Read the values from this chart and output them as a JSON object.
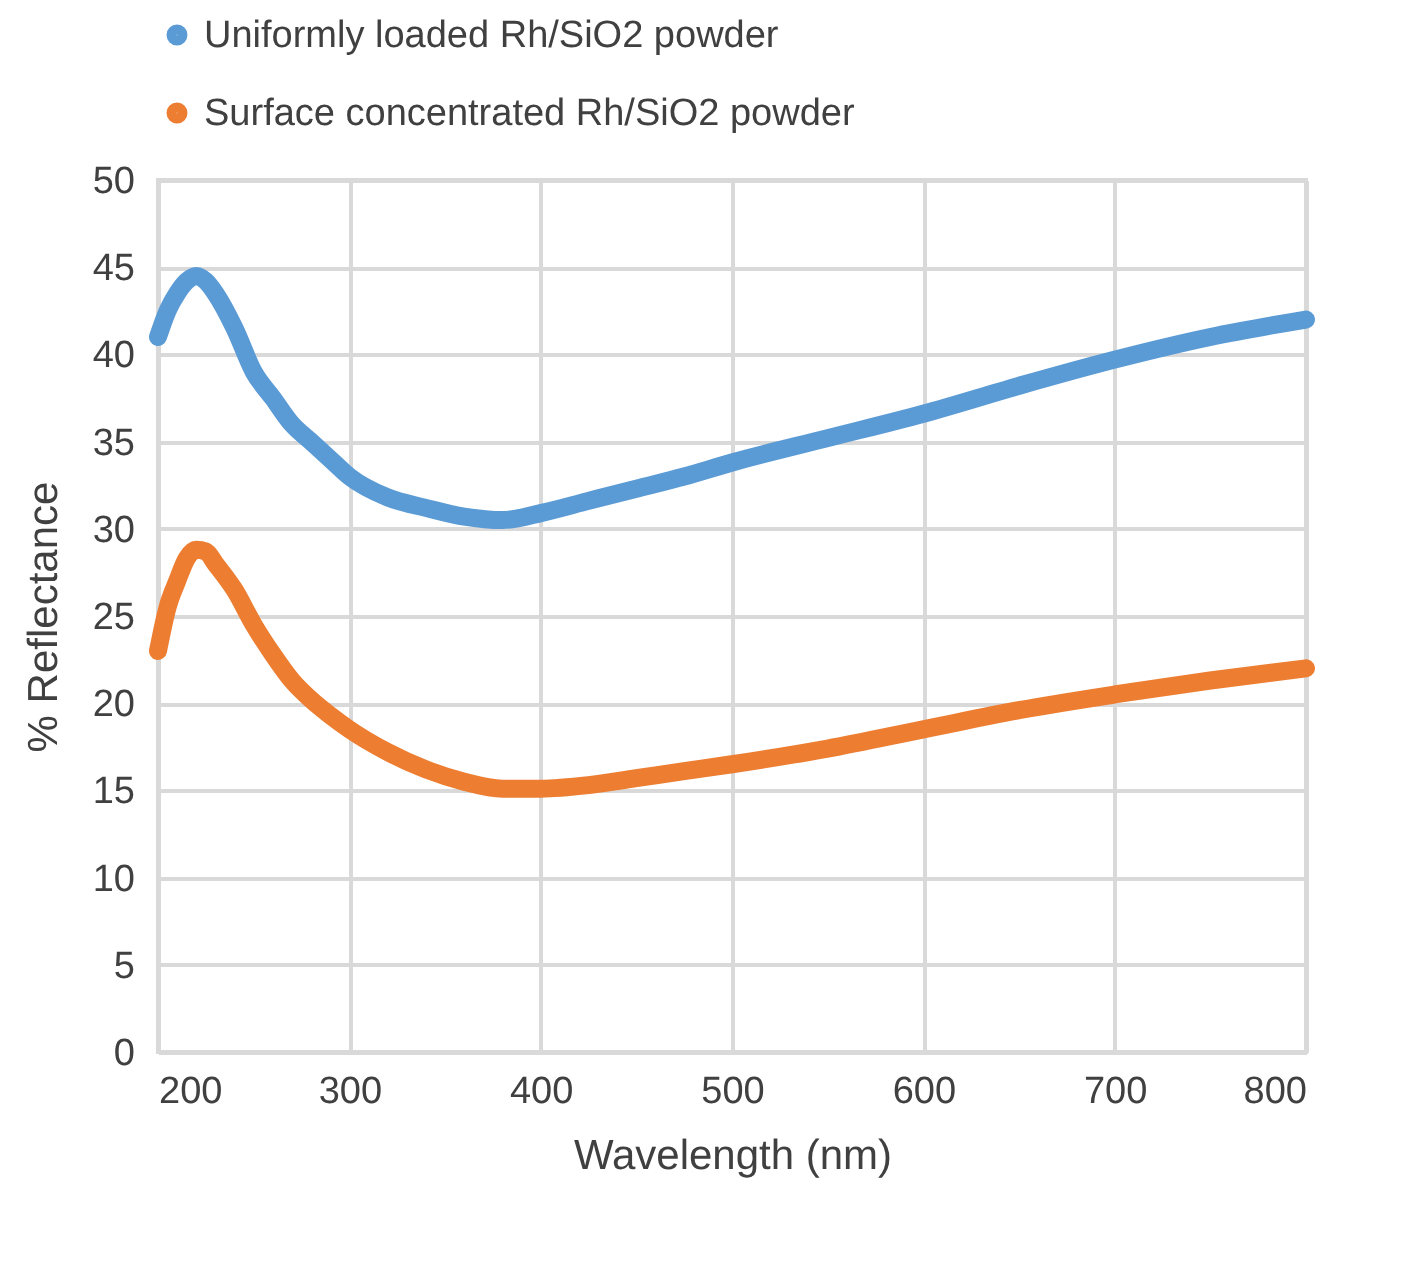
{
  "chart_data": {
    "type": "line",
    "xlabel": "Wavelength (nm)",
    "ylabel": "% Reflectance",
    "xlim": [
      200,
      800
    ],
    "xticks": [
      200,
      300,
      400,
      500,
      600,
      700,
      800
    ],
    "ylim": [
      0,
      50
    ],
    "yticks": [
      0,
      5,
      10,
      15,
      20,
      25,
      30,
      35,
      40,
      45,
      50
    ],
    "grid": true,
    "legend": "top",
    "x": [
      200,
      205,
      210,
      215,
      220,
      225,
      230,
      240,
      250,
      260,
      270,
      280,
      290,
      300,
      320,
      340,
      360,
      380,
      400,
      425,
      450,
      475,
      500,
      550,
      600,
      650,
      700,
      750,
      800
    ],
    "series": [
      {
        "name": "Uniformly loaded Rh/SiO2 powder",
        "color": "#5b9bd5",
        "values": [
          41,
          42.5,
          43.5,
          44.2,
          44.5,
          44.2,
          43.5,
          41.5,
          39,
          37.5,
          36,
          35,
          34,
          33,
          31.8,
          31.2,
          30.7,
          30.5,
          30.9,
          31.6,
          32.3,
          33,
          33.8,
          35.2,
          36.6,
          38.2,
          39.7,
          41,
          42
        ]
      },
      {
        "name": "Surface concentrated Rh/SiO2 powder",
        "color": "#ed7d31",
        "values": [
          23,
          25.5,
          27,
          28.3,
          28.8,
          28.7,
          28,
          26.5,
          24.5,
          22.8,
          21.3,
          20.2,
          19.3,
          18.5,
          17.2,
          16.2,
          15.5,
          15.1,
          15.1,
          15.3,
          15.7,
          16.1,
          16.5,
          17.4,
          18.5,
          19.6,
          20.5,
          21.3,
          22
        ]
      }
    ]
  }
}
